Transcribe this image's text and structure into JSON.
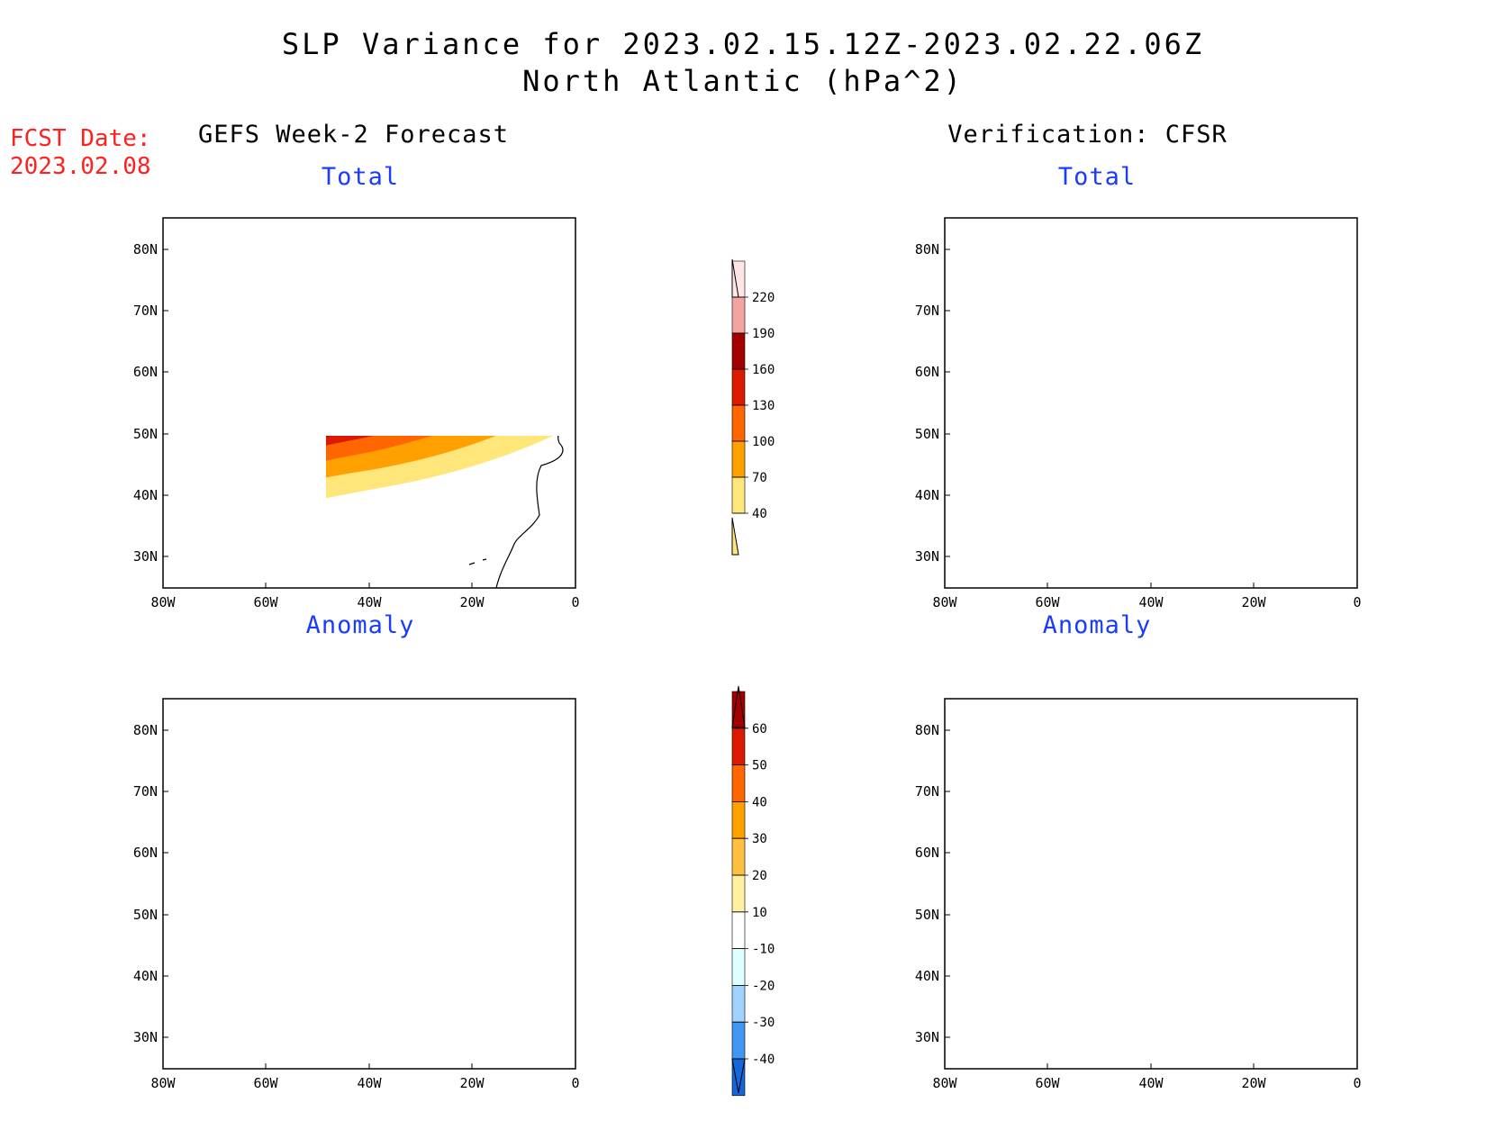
{
  "header": {
    "title_line1": "SLP Variance for 2023.02.15.12Z-2023.02.22.06Z",
    "title_line2": "North Atlantic (hPa^2)"
  },
  "forecast_date": {
    "label": "FCST Date:",
    "value": "2023.02.08"
  },
  "columns": {
    "left": "GEFS Week-2 Forecast",
    "right": "Verification: CFSR"
  },
  "panel_titles": {
    "top_left": "Total",
    "top_right": "Total",
    "bottom_left": "Anomaly",
    "bottom_right": "Anomaly"
  },
  "map_axes": {
    "lat_labels": [
      "80N",
      "70N",
      "60N",
      "50N",
      "40N",
      "30N"
    ],
    "lon_labels": [
      "80W",
      "60W",
      "40W",
      "20W",
      "0"
    ]
  },
  "colorbars": {
    "total": {
      "labels": [
        "220",
        "190",
        "160",
        "130",
        "100",
        "70",
        "40"
      ],
      "colors": [
        "#ffe6e6",
        "#f4a3a3",
        "#a50000",
        "#dc1a00",
        "#ff6600",
        "#ffa000",
        "#ffe67a"
      ]
    },
    "anomaly": {
      "labels": [
        "60",
        "50",
        "40",
        "30",
        "20",
        "10",
        "-10",
        "-20",
        "-30",
        "-40"
      ],
      "colors": [
        "#a50000",
        "#dc1a00",
        "#ff6600",
        "#ffa000",
        "#ffc040",
        "#fff0a0",
        "#ffffff",
        "#e0ffff",
        "#a0d2ff",
        "#4096f0",
        "#1466dc"
      ]
    }
  }
}
